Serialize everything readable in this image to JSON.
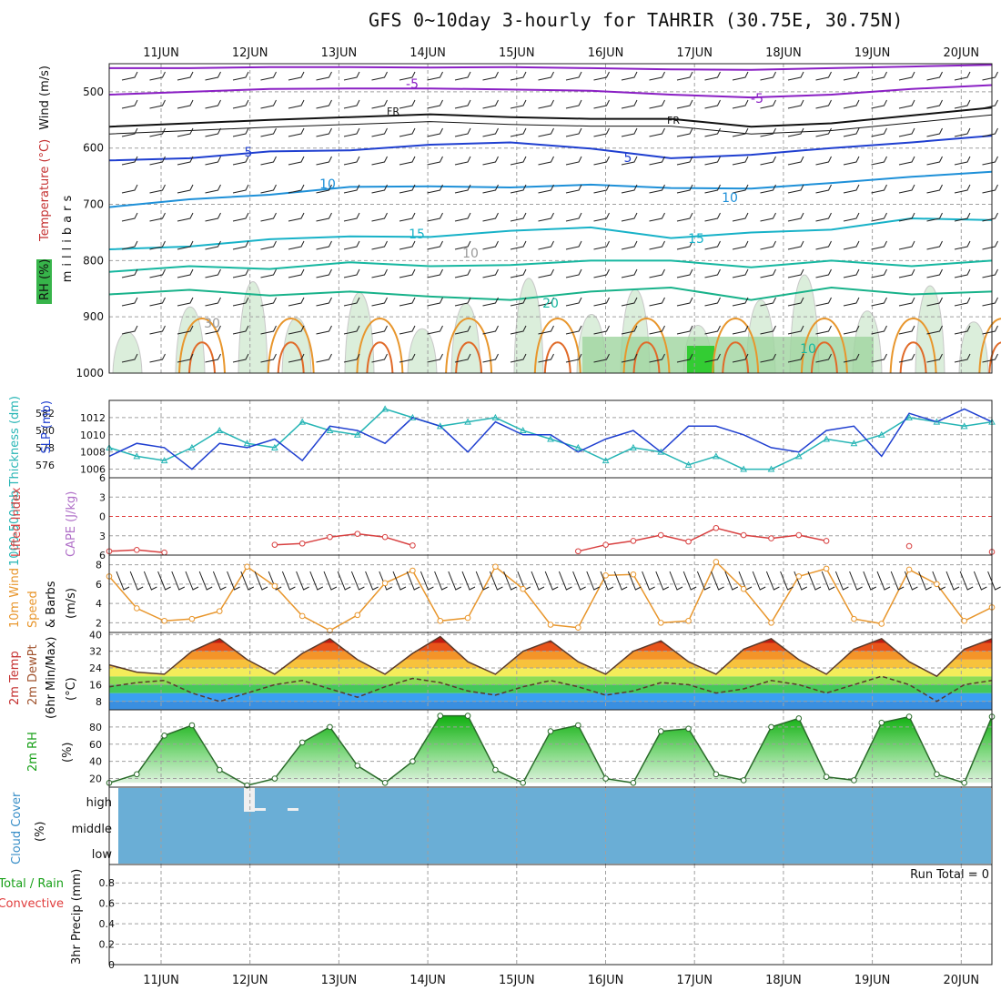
{
  "title": "GFS 0~10day 3-hourly for TAHRIR (30.75E, 30.75N)",
  "chart_data": [
    {
      "panel": "upper-air",
      "type": "heatmap",
      "ylabel": "millibars",
      "labels": {
        "wind": "Wind (m/s)",
        "temperature": "Temperature (°C)",
        "rh": "RH (%)"
      },
      "x_ticks": [
        "11JUN",
        "12JUN",
        "13JUN",
        "14JUN",
        "15JUN",
        "16JUN",
        "17JUN",
        "18JUN",
        "19JUN",
        "20JUN"
      ],
      "y_ticks": [
        500,
        600,
        700,
        800,
        900,
        1000
      ],
      "ylim": [
        450,
        1000
      ],
      "contour_labels": [
        "-5",
        "-5",
        "FR",
        "FR",
        "5",
        "5",
        "10",
        "10",
        "15",
        "15",
        "20",
        "30",
        "10",
        "10"
      ],
      "isotherms": [
        {
          "name": "-5a",
          "p": [
            458,
            458,
            456,
            456,
            457,
            456,
            458,
            460,
            461,
            458,
            455,
            452
          ]
        },
        {
          "name": "-5b",
          "p": [
            505,
            500,
            495,
            494,
            494,
            496,
            498,
            505,
            510,
            505,
            495,
            488
          ]
        },
        {
          "name": "FR",
          "p": [
            562,
            556,
            550,
            545,
            540,
            545,
            548,
            548,
            562,
            556,
            542,
            528
          ]
        },
        {
          "name": "5",
          "p": [
            622,
            618,
            606,
            604,
            594,
            590,
            601,
            618,
            612,
            600,
            590,
            578
          ]
        },
        {
          "name": "10",
          "p": [
            705,
            691,
            683,
            669,
            668,
            670,
            665,
            671,
            672,
            662,
            651,
            642
          ]
        },
        {
          "name": "15",
          "p": [
            780,
            775,
            762,
            757,
            758,
            747,
            741,
            760,
            750,
            745,
            725,
            728
          ]
        },
        {
          "name": "15b",
          "p": [
            820,
            810,
            815,
            803,
            810,
            808,
            800,
            800,
            812,
            800,
            810,
            800
          ]
        },
        {
          "name": "20",
          "p": [
            860,
            852,
            862,
            855,
            864,
            870,
            855,
            848,
            870,
            848,
            860,
            855
          ]
        }
      ]
    },
    {
      "panel": "slp-thickness",
      "type": "line",
      "y_ticks_left": [
        576,
        578,
        580,
        582
      ],
      "y_ticks_right": [
        1006,
        1008,
        1010,
        1012
      ],
      "labels": {
        "thickness": "1000-500mb Thickness (dm)",
        "slp": "SLP (mb)"
      },
      "series": [
        {
          "name": "SLP (mb)",
          "values": [
            1007.5,
            1009,
            1008.5,
            1006,
            1009,
            1008.5,
            1009.5,
            1007,
            1011,
            1010.5,
            1009,
            1012,
            1011,
            1008,
            1011.5,
            1010,
            1010,
            1008,
            1009.5,
            1010.5,
            1008,
            1011,
            1011,
            1010,
            1008.5,
            1008,
            1010.5,
            1011,
            1007.5,
            1012.5,
            1011.5,
            1013,
            1011.5
          ]
        },
        {
          "name": "Thickness (dm)",
          "values": [
            578,
            577,
            576.5,
            578,
            580,
            578.5,
            578,
            581,
            580,
            579.5,
            582.5,
            581.5,
            580.5,
            581,
            581.5,
            580,
            579,
            578,
            576.5,
            578,
            577.5,
            576,
            577,
            575.5,
            575.5,
            577,
            579,
            578.5,
            579.5,
            581.5,
            581,
            580.5,
            581
          ]
        }
      ]
    },
    {
      "panel": "cape-li",
      "type": "line",
      "labels": {
        "li": "Lifted Index",
        "cape": "CAPE (J/kg)"
      },
      "y_ticks": [
        -6,
        -3,
        0,
        3,
        6
      ],
      "series": [
        {
          "name": "Lifted Index",
          "values": [
            5.4,
            5.2,
            5.6,
            null,
            null,
            null,
            4.4,
            4.2,
            3.2,
            2.7,
            3.2,
            4.5,
            null,
            null,
            null,
            null,
            null,
            5.4,
            4.4,
            3.8,
            2.9,
            3.9,
            1.8,
            2.9,
            3.4,
            2.9,
            3.8,
            null,
            null,
            4.6,
            null,
            null,
            5.5
          ]
        }
      ]
    },
    {
      "panel": "wind10m",
      "type": "line",
      "labels": {
        "a": "10m Wind",
        "b": "Speed",
        "c": "& Barbs",
        "unit": "(m/s)"
      },
      "y_ticks": [
        2,
        4,
        6,
        8
      ],
      "ylim": [
        1,
        9
      ],
      "series": [
        {
          "name": "10m wind speed (m/s)",
          "values": [
            6.8,
            3.5,
            2.2,
            2.4,
            3.2,
            7.8,
            5.8,
            2.7,
            1.2,
            2.8,
            6.1,
            7.4,
            2.2,
            2.5,
            7.8,
            5.5,
            1.8,
            1.5,
            6.9,
            7.0,
            2.0,
            2.2,
            8.3,
            5.5,
            2.0,
            6.8,
            7.6,
            2.4,
            1.9,
            7.5,
            6.0,
            2.2,
            3.6
          ]
        }
      ]
    },
    {
      "panel": "temp2m",
      "type": "area",
      "labels": {
        "a": "2m Temp",
        "b": "2m DewPt",
        "c": "(6hr Min/Max)",
        "unit": "(°C)"
      },
      "y_ticks": [
        8,
        16,
        24,
        32,
        40
      ],
      "ylim": [
        4,
        41
      ],
      "series": [
        {
          "name": "2m Temp (°C)",
          "values": [
            25.5,
            22,
            21,
            32,
            38,
            28,
            21,
            31,
            38,
            28,
            21,
            31,
            39,
            27,
            21,
            32,
            37,
            27,
            21,
            32,
            37,
            27,
            21,
            33,
            38,
            28,
            21,
            33,
            38,
            27,
            20,
            33,
            38
          ]
        },
        {
          "name": "2m DewPt (°C)",
          "values": [
            15,
            17,
            18,
            12,
            8,
            12,
            16,
            18,
            14,
            10,
            15,
            19,
            17,
            13,
            11,
            15,
            18,
            15,
            11,
            13,
            17,
            16,
            12,
            14,
            18,
            16,
            12,
            16,
            20,
            16,
            8,
            16,
            18
          ]
        }
      ]
    },
    {
      "panel": "rh2m",
      "type": "area",
      "labels": {
        "a": "2m RH",
        "unit": "(%)"
      },
      "y_ticks": [
        20,
        40,
        60,
        80
      ],
      "ylim": [
        10,
        100
      ],
      "series": [
        {
          "name": "2m RH (%)",
          "values": [
            15,
            25,
            70,
            82,
            30,
            12,
            20,
            62,
            80,
            35,
            15,
            40,
            93,
            93,
            30,
            15,
            75,
            82,
            20,
            15,
            75,
            78,
            25,
            18,
            80,
            90,
            22,
            18,
            85,
            92,
            25,
            15,
            92
          ]
        }
      ]
    },
    {
      "panel": "cloud",
      "type": "heatmap",
      "labels": {
        "a": "Cloud Cover",
        "unit": "(%)",
        "high": "high",
        "middle": "middle",
        "low": "low"
      }
    },
    {
      "panel": "precip",
      "type": "bar",
      "labels": {
        "a": "Total / Rain",
        "b": "Convective",
        "c": "3hr Precip (mm)",
        "run_total": "Run Total = 0"
      },
      "y_ticks": [
        "0",
        "0.2",
        "0.4",
        "0.6",
        "0.8"
      ],
      "values": []
    }
  ]
}
